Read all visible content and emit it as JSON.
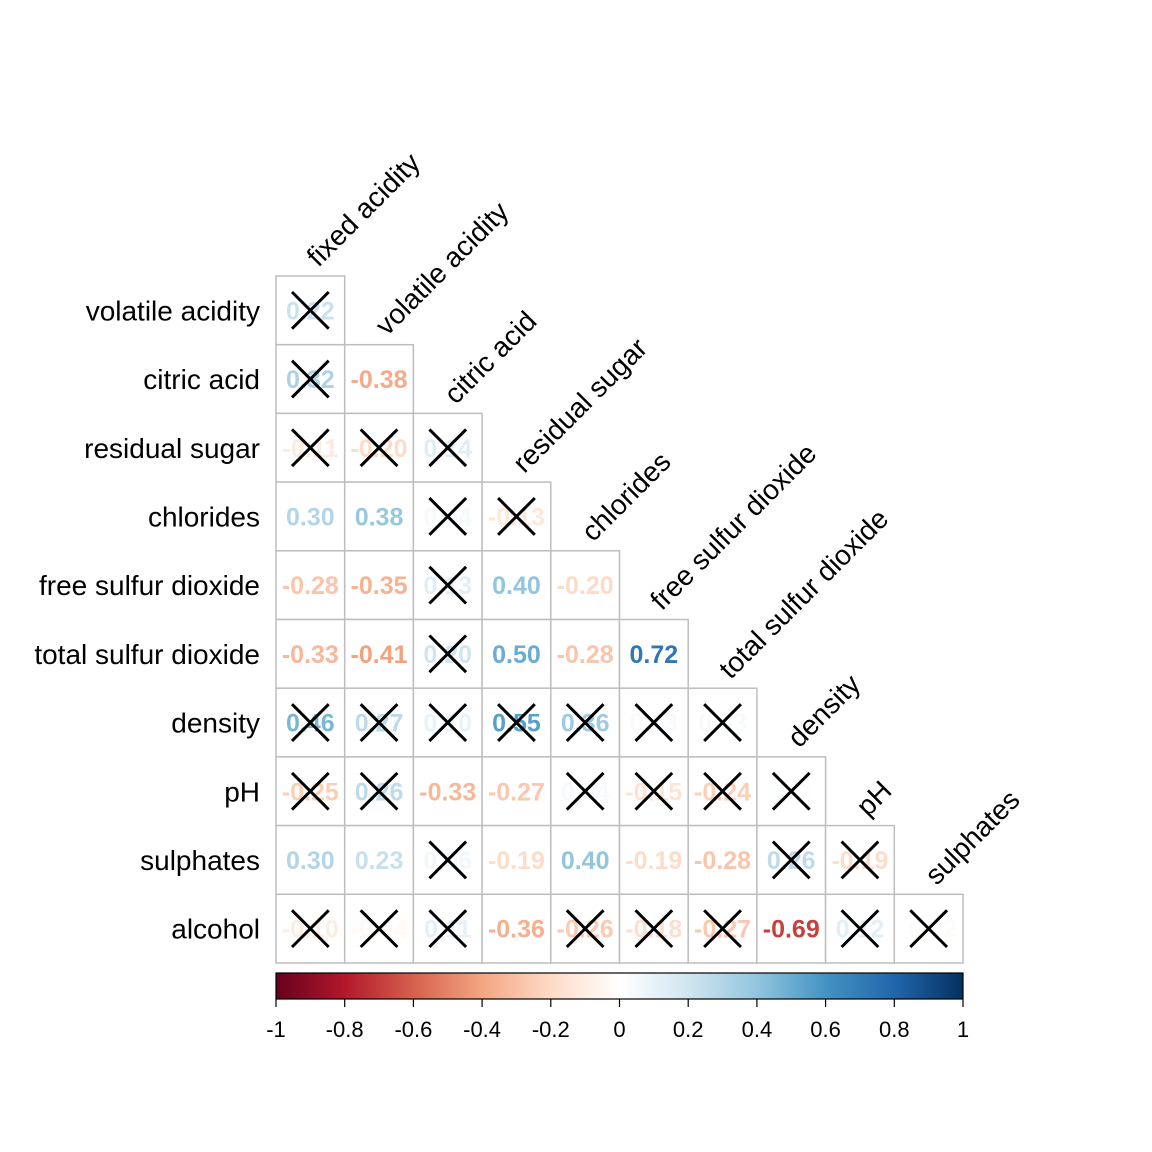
{
  "chart_data": {
    "type": "heatmap",
    "variant": "lower-triangle correlation matrix with significance crosses",
    "column_labels": [
      "fixed acidity",
      "volatile acidity",
      "citric acid",
      "residual sugar",
      "chlorides",
      "free sulfur dioxide",
      "total sulfur dioxide",
      "density",
      "pH",
      "sulphates"
    ],
    "row_labels": [
      "volatile acidity",
      "citric acid",
      "residual sugar",
      "chlorides",
      "free sulfur dioxide",
      "total sulfur dioxide",
      "density",
      "pH",
      "sulphates",
      "alcohol"
    ],
    "cells": [
      [
        {
          "v": "0.22",
          "n": 0.22,
          "x": true
        }
      ],
      [
        {
          "v": "0.32",
          "n": 0.32,
          "x": true
        },
        {
          "v": "-0.38",
          "n": -0.38,
          "x": false
        }
      ],
      [
        {
          "v": "-0.11",
          "n": -0.11,
          "x": true
        },
        {
          "v": "-0.20",
          "n": -0.2,
          "x": true
        },
        {
          "v": "0.14",
          "n": 0.14,
          "x": true
        }
      ],
      [
        {
          "v": "0.30",
          "n": 0.3,
          "x": false
        },
        {
          "v": "0.38",
          "n": 0.38,
          "x": false
        },
        {
          "v": "0.04",
          "n": 0.04,
          "x": true
        },
        {
          "v": "-0.13",
          "n": -0.13,
          "x": true
        }
      ],
      [
        {
          "v": "-0.28",
          "n": -0.28,
          "x": false
        },
        {
          "v": "-0.35",
          "n": -0.35,
          "x": false
        },
        {
          "v": "0.13",
          "n": 0.13,
          "x": true
        },
        {
          "v": "0.40",
          "n": 0.4,
          "x": false
        },
        {
          "v": "-0.20",
          "n": -0.2,
          "x": false
        }
      ],
      [
        {
          "v": "-0.33",
          "n": -0.33,
          "x": false
        },
        {
          "v": "-0.41",
          "n": -0.41,
          "x": false
        },
        {
          "v": "0.20",
          "n": 0.2,
          "x": true
        },
        {
          "v": "0.50",
          "n": 0.5,
          "x": false
        },
        {
          "v": "-0.28",
          "n": -0.28,
          "x": false
        },
        {
          "v": "0.72",
          "n": 0.72,
          "x": false
        }
      ],
      [
        {
          "v": "0.46",
          "n": 0.46,
          "x": true
        },
        {
          "v": "0.27",
          "n": 0.27,
          "x": true
        },
        {
          "v": "0.10",
          "n": 0.1,
          "x": true
        },
        {
          "v": "0.55",
          "n": 0.55,
          "x": true
        },
        {
          "v": "0.36",
          "n": 0.36,
          "x": true
        },
        {
          "v": "0.03",
          "n": 0.03,
          "x": true
        },
        {
          "v": "0.03",
          "n": 0.03,
          "x": true
        }
      ],
      [
        {
          "v": "-0.25",
          "n": -0.25,
          "x": true
        },
        {
          "v": "0.26",
          "n": 0.26,
          "x": true
        },
        {
          "v": "-0.33",
          "n": -0.33,
          "x": false
        },
        {
          "v": "-0.27",
          "n": -0.27,
          "x": false
        },
        {
          "v": "0.04",
          "n": 0.04,
          "x": true
        },
        {
          "v": "-0.15",
          "n": -0.15,
          "x": true
        },
        {
          "v": "-0.24",
          "n": -0.24,
          "x": true
        },
        {
          "v": "0.01",
          "n": 0.01,
          "x": true
        }
      ],
      [
        {
          "v": "0.30",
          "n": 0.3,
          "x": false
        },
        {
          "v": "0.23",
          "n": 0.23,
          "x": false
        },
        {
          "v": "0.06",
          "n": 0.06,
          "x": true
        },
        {
          "v": "-0.19",
          "n": -0.19,
          "x": false
        },
        {
          "v": "0.40",
          "n": 0.4,
          "x": false
        },
        {
          "v": "-0.19",
          "n": -0.19,
          "x": false
        },
        {
          "v": "-0.28",
          "n": -0.28,
          "x": false
        },
        {
          "v": "0.26",
          "n": 0.26,
          "x": true
        },
        {
          "v": "-0.19",
          "n": -0.19,
          "x": true
        }
      ],
      [
        {
          "v": "-0.10",
          "n": -0.1,
          "x": true
        },
        {
          "v": "-0.04",
          "n": -0.04,
          "x": true
        },
        {
          "v": "0.11",
          "n": 0.11,
          "x": true
        },
        {
          "v": "-0.36",
          "n": -0.36,
          "x": false
        },
        {
          "v": "-0.26",
          "n": -0.26,
          "x": true
        },
        {
          "v": "-0.18",
          "n": -0.18,
          "x": true
        },
        {
          "v": "-0.27",
          "n": -0.27,
          "x": true
        },
        {
          "v": "-0.69",
          "n": -0.69,
          "x": false
        },
        {
          "v": "0.12",
          "n": 0.12,
          "x": true
        },
        {
          "v": "-0.02",
          "n": -0.02,
          "x": true
        }
      ]
    ],
    "colorbar": {
      "range": [
        -1,
        1
      ],
      "tick_labels": [
        "-1",
        "-0.8",
        "-0.6",
        "-0.4",
        "-0.2",
        "0",
        "0.2",
        "0.4",
        "0.6",
        "0.8",
        "1"
      ],
      "palette": [
        "#67001F",
        "#B2182B",
        "#D6604D",
        "#F4A582",
        "#FDDBC7",
        "#FFFFFF",
        "#D1E5F0",
        "#92C5DE",
        "#4393C3",
        "#2166AC",
        "#053061"
      ]
    },
    "cell_border_color": "#BEBEBE",
    "cross_color": "#000000"
  }
}
